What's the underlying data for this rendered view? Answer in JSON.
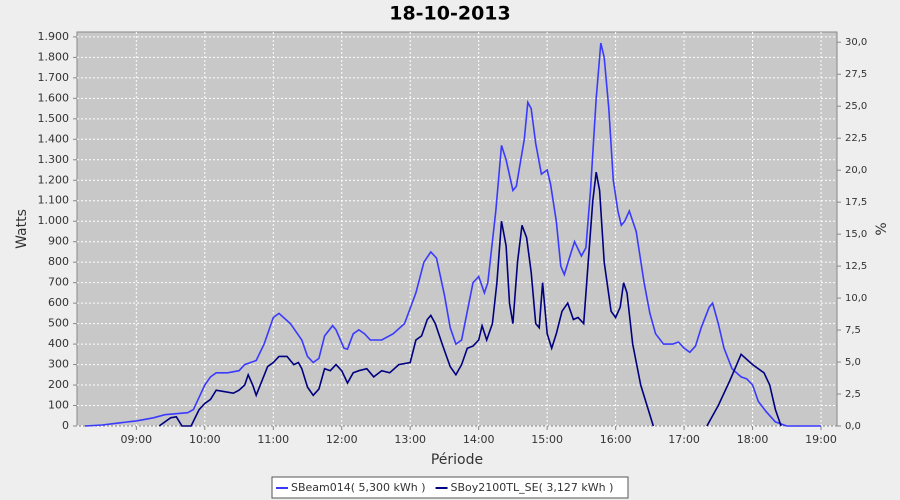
{
  "chart_data": {
    "type": "line",
    "title": "18-10-2013",
    "x_label": "Période",
    "y_label": "Watts",
    "y2_label": "%",
    "xlim": [
      "08:08",
      "19:14"
    ],
    "xticks": [
      "09:00",
      "10:00",
      "11:00",
      "12:00",
      "13:00",
      "14:00",
      "15:00",
      "16:00",
      "17:00",
      "18:00",
      "19:00"
    ],
    "ylim": [
      0,
      1924
    ],
    "yticks": [
      0,
      100,
      200,
      300,
      400,
      500,
      600,
      700,
      800,
      900,
      {
        "value": 1000,
        "label": "1.000"
      },
      {
        "value": 1100,
        "label": "1.100"
      },
      {
        "value": 1200,
        "label": "1.200"
      },
      {
        "value": 1300,
        "label": "1.300"
      },
      {
        "value": 1400,
        "label": "1.400"
      },
      {
        "value": 1500,
        "label": "1.500"
      },
      {
        "value": 1600,
        "label": "1.600"
      },
      {
        "value": 1700,
        "label": "1.700"
      },
      {
        "value": 1800,
        "label": "1.800"
      },
      {
        "value": 1900,
        "label": "1.900"
      }
    ],
    "y2lim": [
      0,
      30.8
    ],
    "y2ticks": [
      {
        "value": 0,
        "label": "0,0"
      },
      {
        "value": 2.5,
        "label": "2,5"
      },
      {
        "value": 5,
        "label": "5,0"
      },
      {
        "value": 7.5,
        "label": "7,5"
      },
      {
        "value": 10,
        "label": "10,0"
      },
      {
        "value": 12.5,
        "label": "12,5"
      },
      {
        "value": 15,
        "label": "15,0"
      },
      {
        "value": 17.5,
        "label": "17,5"
      },
      {
        "value": 20,
        "label": "20,0"
      },
      {
        "value": 22.5,
        "label": "22,5"
      },
      {
        "value": 25,
        "label": "25,0"
      },
      {
        "value": 27.5,
        "label": "27,5"
      },
      {
        "value": 30,
        "label": "30,0"
      }
    ],
    "grid": true,
    "series": [
      {
        "name": "SBeam014( 5,300 kWh )",
        "color": "#3a3aff",
        "x": [
          "08:15",
          "08:30",
          "08:45",
          "09:00",
          "09:15",
          "09:25",
          "09:35",
          "09:45",
          "09:50",
          "10:00",
          "10:05",
          "10:10",
          "10:20",
          "10:30",
          "10:35",
          "10:45",
          "10:52",
          "11:00",
          "11:05",
          "11:15",
          "11:25",
          "11:30",
          "11:35",
          "11:40",
          "11:45",
          "11:52",
          "11:55",
          "12:02",
          "12:05",
          "12:10",
          "12:15",
          "12:20",
          "12:25",
          "12:35",
          "12:45",
          "12:55",
          "13:05",
          "13:12",
          "13:18",
          "13:23",
          "13:30",
          "13:35",
          "13:40",
          "13:45",
          "13:50",
          "13:55",
          "14:00",
          "14:05",
          "14:08",
          "14:15",
          "14:20",
          "14:24",
          "14:30",
          "14:33",
          "14:40",
          "14:43",
          "14:46",
          "14:50",
          "14:55",
          "15:00",
          "15:03",
          "15:08",
          "15:12",
          "15:15",
          "15:20",
          "15:24",
          "15:30",
          "15:34",
          "15:38",
          "15:43",
          "15:47",
          "15:50",
          "15:54",
          "15:58",
          "16:02",
          "16:05",
          "16:08",
          "16:12",
          "16:18",
          "16:25",
          "16:30",
          "16:35",
          "16:42",
          "16:50",
          "16:55",
          "17:00",
          "17:05",
          "17:10",
          "17:15",
          "17:22",
          "17:25",
          "17:30",
          "17:35",
          "17:42",
          "17:50",
          "17:55",
          "18:00",
          "18:05",
          "18:12",
          "18:20",
          "18:30",
          "19:00"
        ],
        "values": [
          0,
          5,
          15,
          25,
          40,
          55,
          60,
          65,
          80,
          200,
          240,
          260,
          260,
          270,
          300,
          320,
          400,
          530,
          550,
          500,
          420,
          340,
          310,
          330,
          440,
          490,
          470,
          380,
          375,
          450,
          470,
          450,
          420,
          420,
          450,
          500,
          650,
          800,
          850,
          820,
          640,
          480,
          400,
          420,
          560,
          700,
          730,
          650,
          700,
          1050,
          1370,
          1300,
          1150,
          1170,
          1400,
          1580,
          1550,
          1380,
          1230,
          1250,
          1180,
          1000,
          780,
          740,
          830,
          900,
          830,
          870,
          1150,
          1600,
          1870,
          1800,
          1550,
          1200,
          1050,
          980,
          1000,
          1050,
          950,
          700,
          550,
          450,
          400,
          400,
          410,
          380,
          360,
          390,
          480,
          580,
          600,
          500,
          380,
          280,
          240,
          230,
          200,
          120,
          70,
          20,
          0,
          0
        ]
      },
      {
        "name": "SBoy2100TL_SE( 3,127 kWh )",
        "color": "#000080",
        "x": [
          "09:20",
          "09:30",
          "09:35",
          "09:40",
          "09:48",
          "09:55",
          "10:00",
          "10:05",
          "10:10",
          "10:15",
          "10:25",
          "10:30",
          "10:35",
          "10:38",
          "10:42",
          "10:45",
          "10:50",
          "10:55",
          "11:00",
          "11:05",
          "11:12",
          "11:18",
          "11:22",
          "11:25",
          "11:30",
          "11:35",
          "11:40",
          "11:45",
          "11:50",
          "11:55",
          "12:00",
          "12:05",
          "12:10",
          "12:15",
          "12:22",
          "12:28",
          "12:35",
          "12:42",
          "12:50",
          "13:00",
          "13:05",
          "13:10",
          "13:15",
          "13:18",
          "13:22",
          "13:28",
          "13:35",
          "13:40",
          "13:45",
          "13:50",
          "13:55",
          "14:00",
          "14:03",
          "14:07",
          "14:12",
          "14:16",
          "14:20",
          "14:24",
          "14:27",
          "14:30",
          "14:34",
          "14:38",
          "14:42",
          "14:46",
          "14:50",
          "14:53",
          "14:56",
          "15:00",
          "15:04",
          "15:08",
          "15:13",
          "15:18",
          "15:23",
          "15:27",
          "15:32",
          "15:36",
          "15:40",
          "15:43",
          "15:46",
          "15:50",
          "15:56",
          "16:00",
          "16:04",
          "16:07",
          "16:10",
          "16:15",
          "16:22",
          "16:33",
          "17:00",
          "17:20",
          "17:30",
          "17:40",
          "17:50",
          "18:00",
          "18:10",
          "18:15",
          "18:20",
          "18:25"
        ],
        "values": [
          0,
          40,
          45,
          0,
          0,
          80,
          110,
          130,
          175,
          170,
          160,
          175,
          200,
          250,
          200,
          150,
          220,
          290,
          310,
          340,
          340,
          300,
          310,
          280,
          190,
          150,
          180,
          280,
          270,
          300,
          270,
          210,
          260,
          270,
          280,
          240,
          270,
          260,
          300,
          310,
          420,
          440,
          520,
          540,
          500,
          400,
          290,
          250,
          300,
          380,
          390,
          420,
          490,
          420,
          500,
          700,
          1000,
          880,
          600,
          500,
          800,
          980,
          920,
          750,
          500,
          480,
          700,
          450,
          380,
          450,
          560,
          600,
          520,
          530,
          500,
          800,
          1100,
          1240,
          1150,
          800,
          560,
          530,
          580,
          700,
          650,
          400,
          200,
          0,
          null,
          0,
          100,
          220,
          350,
          300,
          260,
          200,
          80,
          0
        ]
      }
    ]
  }
}
